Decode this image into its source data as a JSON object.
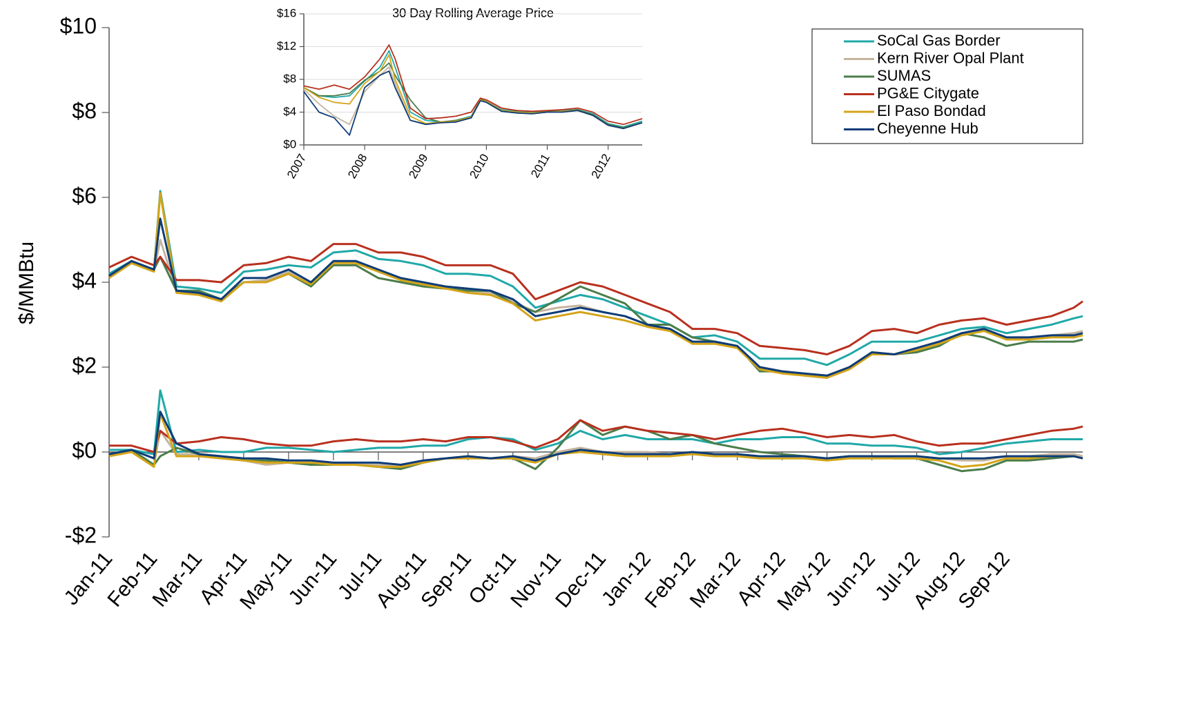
{
  "chart_data": [
    {
      "type": "line",
      "y_label": "$/MMBtu",
      "ylim": [
        -2,
        10
      ],
      "yticks": [
        {
          "value": -2,
          "label": "-$2"
        },
        {
          "value": 0,
          "label": "$0"
        },
        {
          "value": 2,
          "label": "$2"
        },
        {
          "value": 4,
          "label": "$4"
        },
        {
          "value": 6,
          "label": "$6"
        },
        {
          "value": 8,
          "label": "$8"
        },
        {
          "value": 10,
          "label": "$10"
        }
      ],
      "xlim": [
        0,
        21.7
      ],
      "xticks": [
        {
          "value": 0,
          "label": "Jan-11"
        },
        {
          "value": 1,
          "label": "Feb-11"
        },
        {
          "value": 2,
          "label": "Mar-11"
        },
        {
          "value": 3,
          "label": "Apr-11"
        },
        {
          "value": 4,
          "label": "May-11"
        },
        {
          "value": 5,
          "label": "Jun-11"
        },
        {
          "value": 6,
          "label": "Jul-11"
        },
        {
          "value": 7,
          "label": "Aug-11"
        },
        {
          "value": 8,
          "label": "Sep-11"
        },
        {
          "value": 9,
          "label": "Oct-11"
        },
        {
          "value": 10,
          "label": "Nov-11"
        },
        {
          "value": 11,
          "label": "Dec-11"
        },
        {
          "value": 12,
          "label": "Jan-12"
        },
        {
          "value": 13,
          "label": "Feb-12"
        },
        {
          "value": 14,
          "label": "Mar-12"
        },
        {
          "value": 15,
          "label": "Apr-12"
        },
        {
          "value": 16,
          "label": "May-12"
        },
        {
          "value": 17,
          "label": "Jun-12"
        },
        {
          "value": 18,
          "label": "Jul-12"
        },
        {
          "value": 19,
          "label": "Aug-12"
        },
        {
          "value": 20,
          "label": "Sep-12"
        }
      ],
      "x": [
        0,
        0.5,
        1,
        1.14,
        1.5,
        2,
        2.5,
        3,
        3.5,
        4,
        4.5,
        5,
        5.5,
        6,
        6.5,
        7,
        7.5,
        8,
        8.5,
        9,
        9.5,
        10,
        10.5,
        11,
        11.5,
        12,
        12.5,
        13,
        13.5,
        14,
        14.5,
        15,
        15.5,
        16,
        16.5,
        17,
        17.5,
        18,
        18.5,
        19,
        19.5,
        20,
        20.5,
        21,
        21.5,
        21.7
      ],
      "legend": "upper right",
      "series": [
        {
          "name": "SoCal Gas Border",
          "color": "#20a8a8",
          "values": [
            4.2,
            4.5,
            4.3,
            6.15,
            3.9,
            3.85,
            3.75,
            4.25,
            4.3,
            4.4,
            4.35,
            4.7,
            4.75,
            4.55,
            4.5,
            4.4,
            4.2,
            4.2,
            4.15,
            3.9,
            3.4,
            3.55,
            3.7,
            3.6,
            3.4,
            3.2,
            3.0,
            2.7,
            2.75,
            2.6,
            2.2,
            2.2,
            2.2,
            2.05,
            2.3,
            2.6,
            2.6,
            2.6,
            2.75,
            2.9,
            2.95,
            2.8,
            2.9,
            3.0,
            3.15,
            3.2
          ],
          "spread_values": [
            0.05,
            0.05,
            -0.05,
            1.45,
            0.0,
            0.05,
            0.0,
            0.0,
            0.1,
            0.1,
            0.05,
            0.0,
            0.05,
            0.1,
            0.1,
            0.15,
            0.15,
            0.3,
            0.35,
            0.3,
            0.05,
            0.2,
            0.5,
            0.3,
            0.4,
            0.3,
            0.3,
            0.3,
            0.2,
            0.3,
            0.3,
            0.35,
            0.35,
            0.2,
            0.2,
            0.15,
            0.15,
            0.1,
            -0.05,
            0.0,
            0.1,
            0.2,
            0.25,
            0.3,
            0.3,
            0.3
          ]
        },
        {
          "name": "Kern River Opal Plant",
          "color": "#c4b49e",
          "values": [
            4.15,
            4.45,
            4.25,
            5.0,
            3.8,
            3.75,
            3.6,
            4.0,
            4.05,
            4.25,
            4.0,
            4.45,
            4.5,
            4.25,
            4.05,
            3.95,
            3.9,
            3.8,
            3.75,
            3.55,
            3.3,
            3.4,
            3.45,
            3.3,
            3.2,
            3.0,
            2.9,
            2.6,
            2.6,
            2.5,
            2.0,
            1.9,
            1.85,
            1.8,
            2.0,
            2.35,
            2.3,
            2.45,
            2.6,
            2.8,
            2.9,
            2.7,
            2.7,
            2.75,
            2.8,
            2.85
          ],
          "spread_values": [
            -0.05,
            0.0,
            -0.3,
            0.5,
            -0.05,
            -0.05,
            -0.1,
            -0.2,
            -0.3,
            -0.25,
            -0.25,
            -0.25,
            -0.3,
            -0.3,
            -0.3,
            -0.2,
            -0.15,
            -0.1,
            -0.15,
            -0.1,
            -0.15,
            0.0,
            0.1,
            0.0,
            0.0,
            0.0,
            -0.05,
            -0.05,
            -0.05,
            -0.1,
            -0.1,
            -0.1,
            -0.1,
            -0.15,
            -0.1,
            -0.1,
            -0.1,
            -0.1,
            -0.15,
            -0.2,
            -0.2,
            -0.1,
            -0.1,
            -0.05,
            -0.05,
            -0.1
          ]
        },
        {
          "name": "SUMAS",
          "color": "#4a7d4a",
          "values": [
            4.15,
            4.5,
            4.3,
            4.6,
            3.8,
            3.8,
            3.6,
            4.0,
            4.0,
            4.2,
            3.9,
            4.4,
            4.4,
            4.1,
            4.0,
            3.9,
            3.85,
            3.8,
            3.8,
            3.5,
            3.3,
            3.6,
            3.9,
            3.7,
            3.5,
            3.0,
            3.0,
            2.7,
            2.6,
            2.5,
            1.9,
            1.9,
            1.8,
            1.75,
            2.0,
            2.3,
            2.3,
            2.35,
            2.5,
            2.8,
            2.7,
            2.5,
            2.6,
            2.6,
            2.6,
            2.65
          ],
          "spread_values": [
            -0.05,
            0.05,
            -0.3,
            -0.1,
            0.1,
            -0.05,
            -0.1,
            -0.2,
            -0.2,
            -0.25,
            -0.3,
            -0.3,
            -0.3,
            -0.35,
            -0.4,
            -0.25,
            -0.15,
            -0.1,
            -0.15,
            -0.15,
            -0.4,
            0.1,
            0.75,
            0.4,
            0.6,
            0.5,
            0.3,
            0.4,
            0.2,
            0.1,
            0.0,
            -0.05,
            -0.1,
            -0.15,
            -0.1,
            -0.1,
            -0.15,
            -0.15,
            -0.3,
            -0.45,
            -0.4,
            -0.2,
            -0.2,
            -0.15,
            -0.1,
            -0.15
          ]
        },
        {
          "name": "PG&E Citygate",
          "color": "#b8301e",
          "values": [
            4.35,
            4.6,
            4.4,
            4.6,
            4.05,
            4.05,
            4.0,
            4.4,
            4.45,
            4.6,
            4.5,
            4.9,
            4.9,
            4.7,
            4.7,
            4.6,
            4.4,
            4.4,
            4.4,
            4.2,
            3.6,
            3.8,
            4.0,
            3.9,
            3.7,
            3.5,
            3.3,
            2.9,
            2.9,
            2.8,
            2.5,
            2.45,
            2.4,
            2.3,
            2.5,
            2.85,
            2.9,
            2.8,
            3.0,
            3.1,
            3.15,
            3.0,
            3.1,
            3.2,
            3.4,
            3.55
          ],
          "spread_values": [
            0.15,
            0.15,
            0.0,
            0.5,
            0.2,
            0.25,
            0.35,
            0.3,
            0.2,
            0.15,
            0.15,
            0.25,
            0.3,
            0.25,
            0.25,
            0.3,
            0.25,
            0.35,
            0.35,
            0.25,
            0.1,
            0.3,
            0.75,
            0.5,
            0.6,
            0.5,
            0.45,
            0.4,
            0.3,
            0.4,
            0.5,
            0.55,
            0.45,
            0.35,
            0.4,
            0.35,
            0.4,
            0.25,
            0.15,
            0.2,
            0.2,
            0.3,
            0.4,
            0.5,
            0.55,
            0.6
          ]
        },
        {
          "name": "El Paso Bondad",
          "color": "#d4a418",
          "values": [
            4.1,
            4.45,
            4.25,
            6.1,
            3.75,
            3.7,
            3.55,
            4.0,
            4.0,
            4.2,
            3.95,
            4.45,
            4.45,
            4.25,
            4.05,
            3.95,
            3.85,
            3.75,
            3.7,
            3.5,
            3.1,
            3.2,
            3.3,
            3.2,
            3.1,
            2.95,
            2.85,
            2.55,
            2.55,
            2.45,
            1.95,
            1.85,
            1.8,
            1.75,
            1.95,
            2.3,
            2.3,
            2.4,
            2.55,
            2.75,
            2.85,
            2.65,
            2.65,
            2.7,
            2.7,
            2.75
          ],
          "spread_values": [
            -0.1,
            0.0,
            -0.35,
            0.9,
            -0.1,
            -0.1,
            -0.15,
            -0.2,
            -0.25,
            -0.25,
            -0.25,
            -0.3,
            -0.3,
            -0.35,
            -0.35,
            -0.25,
            -0.15,
            -0.15,
            -0.15,
            -0.15,
            -0.25,
            -0.05,
            0.0,
            -0.05,
            -0.1,
            -0.1,
            -0.1,
            -0.05,
            -0.1,
            -0.1,
            -0.15,
            -0.15,
            -0.15,
            -0.2,
            -0.15,
            -0.15,
            -0.15,
            -0.15,
            -0.2,
            -0.35,
            -0.3,
            -0.15,
            -0.15,
            -0.1,
            -0.1,
            -0.15
          ]
        },
        {
          "name": "Cheyenne Hub",
          "color": "#0d3c78",
          "values": [
            4.15,
            4.5,
            4.3,
            5.5,
            3.8,
            3.75,
            3.6,
            4.1,
            4.1,
            4.3,
            4.0,
            4.5,
            4.5,
            4.3,
            4.1,
            4.0,
            3.9,
            3.85,
            3.8,
            3.6,
            3.2,
            3.3,
            3.4,
            3.3,
            3.2,
            3.0,
            2.9,
            2.6,
            2.6,
            2.5,
            2.0,
            1.9,
            1.85,
            1.8,
            2.0,
            2.35,
            2.3,
            2.45,
            2.6,
            2.8,
            2.9,
            2.7,
            2.7,
            2.75,
            2.75,
            2.8
          ],
          "spread_values": [
            -0.05,
            0.05,
            -0.15,
            0.95,
            0.2,
            -0.05,
            -0.1,
            -0.15,
            -0.15,
            -0.2,
            -0.2,
            -0.25,
            -0.25,
            -0.25,
            -0.3,
            -0.2,
            -0.15,
            -0.1,
            -0.15,
            -0.1,
            -0.2,
            -0.05,
            0.05,
            0.0,
            -0.05,
            -0.05,
            -0.05,
            0.0,
            -0.05,
            -0.05,
            -0.1,
            -0.1,
            -0.1,
            -0.15,
            -0.1,
            -0.1,
            -0.1,
            -0.1,
            -0.15,
            -0.15,
            -0.15,
            -0.1,
            -0.1,
            -0.1,
            -0.1,
            -0.15
          ]
        }
      ]
    },
    {
      "type": "line",
      "title": "30 Day Rolling Average Price",
      "ylim": [
        0,
        16
      ],
      "yticks": [
        {
          "value": 0,
          "label": "$0"
        },
        {
          "value": 4,
          "label": "$4"
        },
        {
          "value": 8,
          "label": "$8"
        },
        {
          "value": 12,
          "label": "$12"
        },
        {
          "value": 16,
          "label": "$16"
        }
      ],
      "xlim": [
        2007,
        2012.56
      ],
      "xticks": [
        2007,
        2008,
        2009,
        2010,
        2011,
        2012
      ],
      "grid": true,
      "x": [
        2007,
        2007.25,
        2007.5,
        2007.75,
        2008,
        2008.25,
        2008.4,
        2008.5,
        2008.75,
        2009,
        2009.25,
        2009.5,
        2009.75,
        2009.9,
        2010,
        2010.25,
        2010.5,
        2010.75,
        2011,
        2011.25,
        2011.5,
        2011.75,
        2012,
        2012.25,
        2012.56
      ],
      "series": [
        {
          "color": "#20a8a8",
          "values": [
            7.0,
            6.0,
            5.8,
            6.0,
            7.8,
            9.5,
            11.5,
            9.5,
            4.0,
            3.0,
            2.8,
            3.0,
            3.5,
            5.6,
            5.3,
            4.3,
            4.1,
            4.0,
            4.1,
            4.2,
            4.3,
            3.8,
            2.6,
            2.2,
            2.9
          ]
        },
        {
          "color": "#c4b49e",
          "values": [
            6.8,
            5.0,
            3.5,
            2.5,
            6.5,
            8.5,
            9.5,
            7.5,
            3.0,
            2.6,
            2.7,
            2.8,
            3.3,
            5.4,
            5.2,
            4.1,
            3.9,
            3.8,
            4.0,
            4.0,
            4.2,
            3.6,
            2.4,
            2.0,
            2.7
          ]
        },
        {
          "color": "#4a7d4a",
          "values": [
            7.0,
            6.0,
            6.0,
            6.3,
            7.9,
            9.0,
            10.0,
            8.5,
            5.5,
            3.3,
            2.8,
            3.0,
            3.4,
            5.6,
            5.3,
            4.2,
            4.0,
            3.9,
            4.1,
            4.1,
            4.3,
            3.7,
            2.5,
            2.1,
            2.7
          ]
        },
        {
          "color": "#b8301e",
          "values": [
            7.2,
            6.8,
            7.3,
            6.8,
            8.3,
            10.5,
            12.2,
            10.5,
            4.5,
            3.2,
            3.3,
            3.5,
            4.0,
            5.7,
            5.5,
            4.5,
            4.2,
            4.1,
            4.2,
            4.3,
            4.5,
            4.0,
            2.9,
            2.5,
            3.2
          ]
        },
        {
          "color": "#d4a418",
          "values": [
            7.0,
            5.8,
            5.2,
            5.0,
            7.5,
            9.0,
            11.0,
            8.0,
            3.5,
            2.6,
            2.8,
            2.9,
            3.4,
            5.5,
            5.3,
            4.2,
            4.0,
            3.9,
            4.0,
            4.1,
            4.2,
            3.6,
            2.4,
            2.0,
            2.7
          ]
        },
        {
          "color": "#0d3c78",
          "values": [
            6.5,
            4.0,
            3.3,
            1.2,
            7.0,
            8.5,
            9.0,
            7.0,
            3.0,
            2.5,
            2.7,
            2.8,
            3.3,
            5.4,
            5.2,
            4.1,
            3.9,
            3.8,
            4.0,
            4.0,
            4.2,
            3.6,
            2.4,
            2.0,
            2.7
          ]
        }
      ]
    }
  ]
}
